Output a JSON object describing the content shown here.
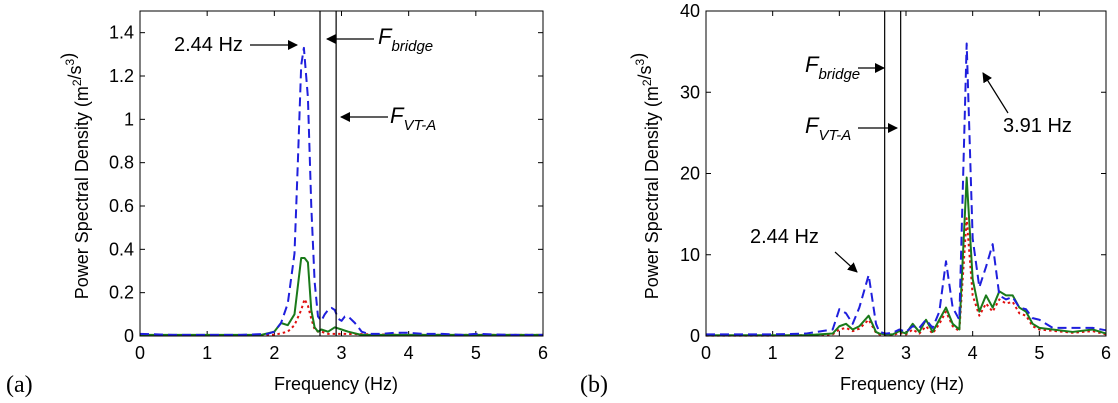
{
  "chart_data": [
    {
      "type": "line",
      "panel_label": "(a)",
      "xlabel": "Frequency (Hz)",
      "ylabel": "Power Spectral Density (m²/s³)",
      "xlim": [
        0,
        6
      ],
      "ylim": [
        0,
        1.5
      ],
      "xticks": [
        0,
        1,
        2,
        3,
        4,
        5,
        6
      ],
      "yticks": [
        0,
        0.2,
        0.4,
        0.6,
        0.8,
        1,
        1.2,
        1.4
      ],
      "ytick_labels": [
        "0",
        "0.2",
        "0.4",
        "0.6",
        "0.8",
        "1",
        "1.2",
        "1.4"
      ],
      "grid": false,
      "vlines": [
        {
          "label": "F_bridge",
          "x": 2.68
        },
        {
          "label": "F_VT-A",
          "x": 2.92
        }
      ],
      "series": [
        {
          "style": "dashed",
          "color": "#1f1fdd",
          "x": [
            0,
            0.5,
            1.0,
            1.5,
            1.9,
            2.0,
            2.1,
            2.2,
            2.3,
            2.35,
            2.4,
            2.44,
            2.5,
            2.55,
            2.6,
            2.65,
            2.7,
            2.75,
            2.8,
            2.85,
            2.9,
            2.95,
            3.0,
            3.05,
            3.1,
            3.2,
            3.3,
            3.4,
            3.6,
            3.8,
            4.0,
            4.2,
            4.5,
            4.8,
            5.0,
            5.5,
            6.0
          ],
          "y": [
            0.01,
            0.005,
            0.005,
            0.005,
            0.01,
            0.02,
            0.06,
            0.15,
            0.38,
            0.8,
            1.25,
            1.33,
            1.1,
            0.6,
            0.25,
            0.09,
            0.07,
            0.1,
            0.12,
            0.13,
            0.12,
            0.08,
            0.07,
            0.09,
            0.09,
            0.06,
            0.02,
            0.01,
            0.01,
            0.015,
            0.015,
            0.01,
            0.01,
            0.005,
            0.01,
            0.005,
            0.005
          ]
        },
        {
          "style": "solid",
          "color": "#1a7a1a",
          "x": [
            0,
            1.0,
            1.8,
            2.0,
            2.1,
            2.2,
            2.3,
            2.4,
            2.45,
            2.5,
            2.55,
            2.6,
            2.65,
            2.7,
            2.8,
            2.9,
            3.0,
            3.1,
            3.3,
            4.0,
            5.0,
            6.0
          ],
          "y": [
            0.005,
            0.005,
            0.005,
            0.02,
            0.06,
            0.05,
            0.1,
            0.36,
            0.36,
            0.34,
            0.12,
            0.04,
            0.02,
            0.03,
            0.02,
            0.04,
            0.03,
            0.02,
            0.005,
            0.005,
            0.005,
            0.005
          ]
        },
        {
          "style": "dotted",
          "color": "#e01010",
          "x": [
            0,
            1.0,
            2.0,
            2.2,
            2.3,
            2.4,
            2.45,
            2.5,
            2.55,
            2.6,
            2.65,
            2.7,
            2.8,
            3.0,
            4.0,
            5.0,
            6.0
          ],
          "y": [
            0.003,
            0.003,
            0.005,
            0.02,
            0.05,
            0.12,
            0.17,
            0.14,
            0.08,
            0.03,
            0.02,
            0.02,
            0.01,
            0.01,
            0.005,
            0.005,
            0.005
          ]
        }
      ],
      "annotations": [
        {
          "text": "2.44 Hz"
        }
      ]
    },
    {
      "type": "line",
      "panel_label": "(b)",
      "xlabel": "Frequency (Hz)",
      "ylabel": "Power Spectral Density (m²/s³)",
      "xlim": [
        0,
        6
      ],
      "ylim": [
        0,
        40
      ],
      "xticks": [
        0,
        1,
        2,
        3,
        4,
        5,
        6
      ],
      "yticks": [
        0,
        10,
        20,
        30,
        40
      ],
      "ytick_labels": [
        "0",
        "10",
        "20",
        "30",
        "40"
      ],
      "grid": false,
      "vlines": [
        {
          "label": "F_bridge",
          "x": 2.68
        },
        {
          "label": "F_VT-A",
          "x": 2.92
        }
      ],
      "series": [
        {
          "style": "dashed",
          "color": "#1f1fdd",
          "x": [
            0,
            1.0,
            1.5,
            1.9,
            2.0,
            2.1,
            2.2,
            2.3,
            2.44,
            2.55,
            2.6,
            2.7,
            2.8,
            2.9,
            3.0,
            3.1,
            3.2,
            3.3,
            3.4,
            3.5,
            3.6,
            3.7,
            3.8,
            3.91,
            4.0,
            4.1,
            4.2,
            4.3,
            4.4,
            4.5,
            4.6,
            4.7,
            4.8,
            4.9,
            5.0,
            5.2,
            5.5,
            5.8,
            6.0
          ],
          "y": [
            0.2,
            0.2,
            0.3,
            0.8,
            3.3,
            2.8,
            1.5,
            3.5,
            7.5,
            1.5,
            0.5,
            0.3,
            0.4,
            0.8,
            0.5,
            1.2,
            1.0,
            2.0,
            1.0,
            3.0,
            9.2,
            3.5,
            2.0,
            36.0,
            12.0,
            6.0,
            8.5,
            11.3,
            5.0,
            4.5,
            4.8,
            3.5,
            3.3,
            2.2,
            2.0,
            1.0,
            1.0,
            1.0,
            0.7
          ]
        },
        {
          "style": "solid",
          "color": "#1a7a1a",
          "x": [
            0,
            1.0,
            1.5,
            1.9,
            2.0,
            2.1,
            2.2,
            2.3,
            2.44,
            2.55,
            2.6,
            2.7,
            2.8,
            2.9,
            3.0,
            3.1,
            3.2,
            3.3,
            3.4,
            3.5,
            3.6,
            3.7,
            3.8,
            3.91,
            4.0,
            4.1,
            4.2,
            4.3,
            4.4,
            4.5,
            4.6,
            4.7,
            4.8,
            4.9,
            5.0,
            5.5,
            5.8,
            6.0
          ],
          "y": [
            0.1,
            0.1,
            0.1,
            0.3,
            1.2,
            1.5,
            0.8,
            1.2,
            2.5,
            0.5,
            0.3,
            0.2,
            0.2,
            0.6,
            0.3,
            1.5,
            0.5,
            2.0,
            0.5,
            2.0,
            3.5,
            1.5,
            0.8,
            19.5,
            7.0,
            3.0,
            5.0,
            3.5,
            5.5,
            5.0,
            5.0,
            3.5,
            3.0,
            1.5,
            1.0,
            0.5,
            0.8,
            0.3
          ]
        },
        {
          "style": "dotted",
          "color": "#e01010",
          "x": [
            0,
            1.0,
            1.5,
            1.9,
            2.0,
            2.1,
            2.2,
            2.3,
            2.44,
            2.55,
            2.6,
            2.7,
            2.8,
            2.9,
            3.0,
            3.1,
            3.2,
            3.3,
            3.4,
            3.5,
            3.6,
            3.7,
            3.8,
            3.91,
            4.0,
            4.1,
            4.2,
            4.3,
            4.4,
            4.5,
            4.6,
            4.7,
            4.8,
            4.9,
            5.0,
            5.5,
            5.8,
            6.0
          ],
          "y": [
            0.05,
            0.05,
            0.1,
            0.2,
            0.8,
            1.0,
            0.6,
            0.9,
            2.0,
            0.4,
            0.2,
            0.1,
            0.1,
            0.4,
            0.2,
            0.8,
            0.3,
            1.2,
            0.3,
            1.5,
            3.0,
            1.2,
            0.6,
            14.5,
            5.0,
            2.5,
            4.0,
            3.0,
            4.5,
            4.0,
            4.2,
            2.8,
            2.5,
            1.2,
            0.8,
            0.4,
            0.6,
            0.2
          ]
        }
      ],
      "annotations": [
        {
          "text": "3.91 Hz"
        },
        {
          "text": "2.44 Hz"
        }
      ]
    }
  ]
}
